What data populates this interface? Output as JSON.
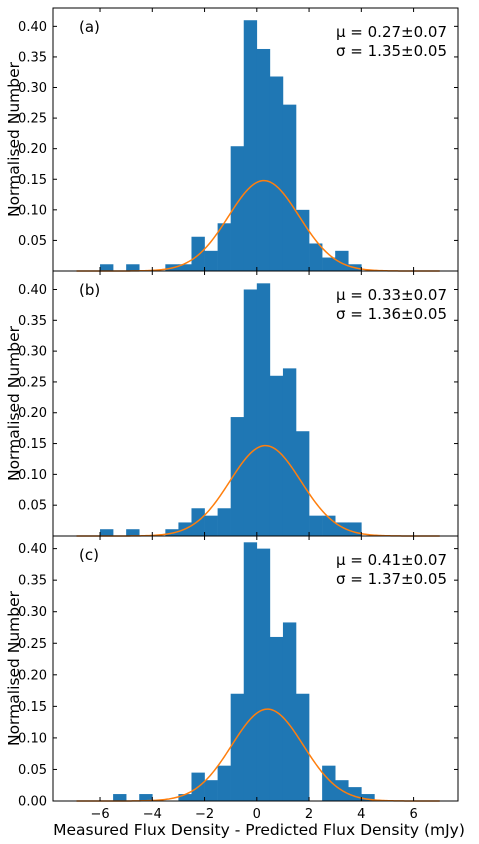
{
  "figure": {
    "xlabel": "Measured Flux Density - Predicted Flux Density (mJy)",
    "bar_color": "#1f77b4",
    "fit_color": "#ff7f0e",
    "xlim": [
      -7.8,
      7.7
    ],
    "xticks": [
      -6,
      -4,
      -2,
      0,
      2,
      4,
      6
    ],
    "xtick_labels": [
      "−6",
      "−4",
      "−2",
      "0",
      "2",
      "4",
      "6"
    ],
    "bin_width": 0.5
  },
  "chart_data": [
    {
      "type": "bar",
      "panel_label": "(a)",
      "ylabel": "Normalised Number",
      "mu_label": "μ = 0.27±0.07",
      "sigma_label": "σ = 1.35±0.05",
      "mu": 0.27,
      "sigma": 1.35,
      "ylim": [
        0,
        0.43
      ],
      "yticks": [
        0.05,
        0.1,
        0.15,
        0.2,
        0.25,
        0.3,
        0.35,
        0.4
      ],
      "ytick_labels": [
        "0.05",
        "0.10",
        "0.15",
        "0.20",
        "0.25",
        "0.30",
        "0.35",
        "0.40"
      ],
      "bins": [
        {
          "x0": -6.0,
          "x1": -5.5,
          "value": 0.011
        },
        {
          "x0": -5.0,
          "x1": -4.5,
          "value": 0.011
        },
        {
          "x0": -3.5,
          "x1": -3.0,
          "value": 0.011
        },
        {
          "x0": -3.0,
          "x1": -2.5,
          "value": 0.011
        },
        {
          "x0": -2.5,
          "x1": -2.0,
          "value": 0.056
        },
        {
          "x0": -2.0,
          "x1": -1.5,
          "value": 0.033
        },
        {
          "x0": -1.5,
          "x1": -1.0,
          "value": 0.078
        },
        {
          "x0": -1.0,
          "x1": -0.5,
          "value": 0.204
        },
        {
          "x0": -0.5,
          "x1": 0.0,
          "value": 0.41
        },
        {
          "x0": 0.0,
          "x1": 0.5,
          "value": 0.363
        },
        {
          "x0": 0.5,
          "x1": 1.0,
          "value": 0.318
        },
        {
          "x0": 1.0,
          "x1": 1.5,
          "value": 0.272
        },
        {
          "x0": 1.5,
          "x1": 2.0,
          "value": 0.1
        },
        {
          "x0": 2.0,
          "x1": 2.5,
          "value": 0.045
        },
        {
          "x0": 2.5,
          "x1": 3.0,
          "value": 0.022
        },
        {
          "x0": 3.0,
          "x1": 3.5,
          "value": 0.033
        },
        {
          "x0": 3.5,
          "x1": 4.0,
          "value": 0.011
        }
      ]
    },
    {
      "type": "bar",
      "panel_label": "(b)",
      "ylabel": "Normalised Number",
      "mu_label": "μ = 0.33±0.07",
      "sigma_label": "σ = 1.36±0.05",
      "mu": 0.33,
      "sigma": 1.36,
      "ylim": [
        0,
        0.43
      ],
      "yticks": [
        0.05,
        0.1,
        0.15,
        0.2,
        0.25,
        0.3,
        0.35,
        0.4
      ],
      "ytick_labels": [
        "0.05",
        "0.10",
        "0.15",
        "0.20",
        "0.25",
        "0.30",
        "0.35",
        "0.40"
      ],
      "bins": [
        {
          "x0": -6.0,
          "x1": -5.5,
          "value": 0.011
        },
        {
          "x0": -5.0,
          "x1": -4.5,
          "value": 0.011
        },
        {
          "x0": -3.5,
          "x1": -3.0,
          "value": 0.011
        },
        {
          "x0": -3.0,
          "x1": -2.5,
          "value": 0.022
        },
        {
          "x0": -2.5,
          "x1": -2.0,
          "value": 0.045
        },
        {
          "x0": -2.0,
          "x1": -1.5,
          "value": 0.033
        },
        {
          "x0": -1.5,
          "x1": -1.0,
          "value": 0.045
        },
        {
          "x0": -1.0,
          "x1": -0.5,
          "value": 0.193
        },
        {
          "x0": -0.5,
          "x1": 0.0,
          "value": 0.4
        },
        {
          "x0": 0.0,
          "x1": 0.5,
          "value": 0.41
        },
        {
          "x0": 0.5,
          "x1": 1.0,
          "value": 0.26
        },
        {
          "x0": 1.0,
          "x1": 1.5,
          "value": 0.272
        },
        {
          "x0": 1.5,
          "x1": 2.0,
          "value": 0.17
        },
        {
          "x0": 2.0,
          "x1": 2.5,
          "value": 0.033
        },
        {
          "x0": 2.5,
          "x1": 3.0,
          "value": 0.033
        },
        {
          "x0": 3.0,
          "x1": 3.5,
          "value": 0.022
        },
        {
          "x0": 3.5,
          "x1": 4.0,
          "value": 0.022
        }
      ]
    },
    {
      "type": "bar",
      "panel_label": "(c)",
      "ylabel": "Normalised Number",
      "mu_label": "μ = 0.41±0.07",
      "sigma_label": "σ = 1.37±0.05",
      "mu": 0.41,
      "sigma": 1.37,
      "ylim": [
        0,
        0.42
      ],
      "yticks": [
        0.0,
        0.05,
        0.1,
        0.15,
        0.2,
        0.25,
        0.3,
        0.35,
        0.4
      ],
      "ytick_labels": [
        "0.00",
        "0.05",
        "0.10",
        "0.15",
        "0.20",
        "0.25",
        "0.30",
        "0.35",
        "0.40"
      ],
      "bins": [
        {
          "x0": -5.5,
          "x1": -5.0,
          "value": 0.011
        },
        {
          "x0": -4.5,
          "x1": -4.0,
          "value": 0.011
        },
        {
          "x0": -3.0,
          "x1": -2.5,
          "value": 0.011
        },
        {
          "x0": -2.5,
          "x1": -2.0,
          "value": 0.045
        },
        {
          "x0": -2.0,
          "x1": -1.5,
          "value": 0.033
        },
        {
          "x0": -1.5,
          "x1": -1.0,
          "value": 0.056
        },
        {
          "x0": -1.0,
          "x1": -0.5,
          "value": 0.17
        },
        {
          "x0": -0.5,
          "x1": 0.0,
          "value": 0.41
        },
        {
          "x0": 0.0,
          "x1": 0.5,
          "value": 0.4
        },
        {
          "x0": 0.5,
          "x1": 1.0,
          "value": 0.26
        },
        {
          "x0": 1.0,
          "x1": 1.5,
          "value": 0.283
        },
        {
          "x0": 1.5,
          "x1": 2.0,
          "value": 0.17
        },
        {
          "x0": 2.5,
          "x1": 3.0,
          "value": 0.056
        },
        {
          "x0": 3.0,
          "x1": 3.5,
          "value": 0.033
        },
        {
          "x0": 3.5,
          "x1": 4.0,
          "value": 0.022
        },
        {
          "x0": 4.0,
          "x1": 4.5,
          "value": 0.011
        }
      ]
    }
  ]
}
